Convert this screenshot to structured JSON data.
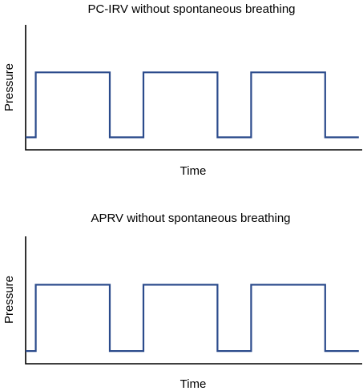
{
  "chart_data": [
    {
      "type": "line",
      "title": "PC-IRV without spontaneous breathing",
      "xlabel": "Time",
      "ylabel": "Pressure",
      "grid": false,
      "legend": "none",
      "line_color": "#2b4b8c",
      "xlim": [
        0,
        100
      ],
      "ylim": [
        0,
        100
      ],
      "series": [
        {
          "x": [
            0,
            3,
            3,
            25,
            25,
            35,
            35,
            57,
            57,
            67,
            67,
            89,
            89,
            99
          ],
          "y": [
            10,
            10,
            62,
            62,
            10,
            10,
            62,
            62,
            10,
            10,
            62,
            62,
            10,
            10
          ]
        }
      ]
    },
    {
      "type": "line",
      "title": "APRV without spontaneous breathing",
      "xlabel": "Time",
      "ylabel": "Pressure",
      "grid": false,
      "legend": "none",
      "line_color": "#2b4b8c",
      "xlim": [
        0,
        100
      ],
      "ylim": [
        0,
        100
      ],
      "series": [
        {
          "x": [
            0,
            3,
            3,
            25,
            25,
            35,
            35,
            57,
            57,
            67,
            67,
            89,
            89,
            99
          ],
          "y": [
            10,
            10,
            62,
            62,
            10,
            10,
            62,
            62,
            10,
            10,
            62,
            62,
            10,
            10
          ]
        }
      ]
    }
  ]
}
